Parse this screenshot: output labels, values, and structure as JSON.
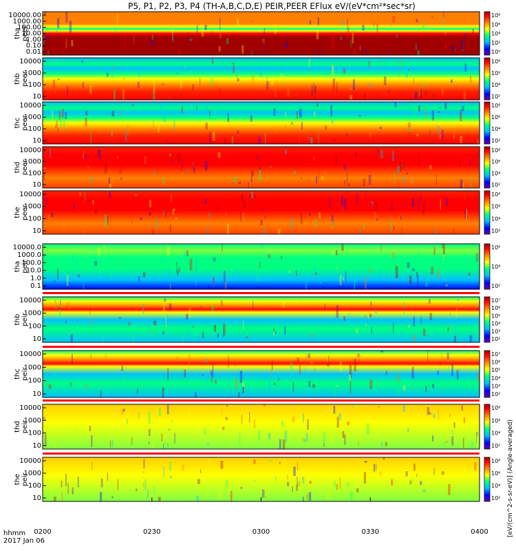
{
  "chart_data": {
    "type": "heatmap",
    "title": "P5, P1, P2, P3, P4 (TH-A,B,C,D,E) PEIR,PEER EFlux eV/(eV*cm²*sec*sr)",
    "xlabel": "hhmm",
    "date_label": "2017 Jan 06",
    "x_ticks": [
      "0200",
      "0230",
      "0300",
      "0330",
      "0400"
    ],
    "x_range": [
      "0200",
      "0400"
    ],
    "colorbar_units": "[eV/(cm^2-s-sr-eV)] (Angle-averaged)",
    "colormap": [
      "#6a00a8",
      "#0000ff",
      "#00c0ff",
      "#00ff80",
      "#ffff00",
      "#ff8000",
      "#ff0000",
      "#a00000"
    ],
    "panels": [
      {
        "name": "tha",
        "species": "peer",
        "ylabel_probe": "tha",
        "ylabel_species": "peer",
        "y_ticks": [
          "10000.00",
          "1000.00",
          "100.00",
          "10.00",
          "1.00",
          "0.10",
          "0.01"
        ],
        "cb_ticks": [
          "10⁸",
          "10⁶",
          "10⁴",
          "10²",
          "10⁰"
        ],
        "pattern": "peer_a"
      },
      {
        "name": "thb",
        "species": "peer",
        "ylabel_probe": "thb",
        "ylabel_species": "peer",
        "y_ticks": [
          "10000",
          "1000",
          "100",
          "10"
        ],
        "cb_ticks": [
          "10⁸",
          "10⁶",
          "10⁴",
          "10²"
        ],
        "pattern": "peer_bc"
      },
      {
        "name": "thc",
        "species": "peer",
        "ylabel_probe": "thc",
        "ylabel_species": "peer",
        "y_ticks": [
          "10000",
          "1000",
          "100",
          "10"
        ],
        "cb_ticks": [
          "10⁸",
          "10⁶",
          "10⁴",
          "10²"
        ],
        "pattern": "peer_bc"
      },
      {
        "name": "thd",
        "species": "peer",
        "ylabel_probe": "thd",
        "ylabel_species": "peer",
        "y_ticks": [
          "10000",
          "1000",
          "100",
          "10"
        ],
        "cb_ticks": [
          "10⁸",
          "10⁶",
          "10⁴",
          "10²"
        ],
        "pattern": "peer_de"
      },
      {
        "name": "the",
        "species": "peer",
        "ylabel_probe": "the",
        "ylabel_species": "peer",
        "y_ticks": [
          "10000",
          "1000",
          "100",
          "10"
        ],
        "cb_ticks": [
          "10⁸",
          "10⁶",
          "10⁴",
          "10²"
        ],
        "pattern": "peer_de"
      },
      {
        "name": "tha",
        "species": "peir",
        "ylabel_probe": "tha",
        "ylabel_species": "peir",
        "y_ticks": [
          "10000.0",
          "1000.0",
          "100.0",
          "10.0",
          "1.0",
          "0.1"
        ],
        "cb_ticks": [
          "10⁶",
          "10⁴",
          "10²"
        ],
        "pattern": "peir_a"
      },
      {
        "name": "thb",
        "species": "peir",
        "ylabel_probe": "thb",
        "ylabel_species": "peir",
        "y_ticks": [
          "10000",
          "1000",
          "100",
          "10"
        ],
        "cb_ticks": [
          "10⁷",
          "10⁶",
          "10⁵",
          "10⁴",
          "10³",
          "10²"
        ],
        "pattern": "peir_bc"
      },
      {
        "name": "thc",
        "species": "peir",
        "ylabel_probe": "thc",
        "ylabel_species": "peir",
        "y_ticks": [
          "10000",
          "1000",
          "100",
          "10"
        ],
        "cb_ticks": [
          "10⁷",
          "10⁶",
          "10⁵",
          "10⁴",
          "10³",
          "10²"
        ],
        "pattern": "peir_bc"
      },
      {
        "name": "thd",
        "species": "peir",
        "ylabel_probe": "thd",
        "ylabel_species": "peir",
        "y_ticks": [
          "10000",
          "1000",
          "100",
          "10"
        ],
        "cb_ticks": [
          "10⁸",
          "10⁶",
          "10⁴",
          "10²"
        ],
        "pattern": "peir_de"
      },
      {
        "name": "the",
        "species": "peir",
        "ylabel_probe": "the",
        "ylabel_species": "peir",
        "y_ticks": [
          "10000",
          "1000",
          "100",
          "10"
        ],
        "cb_ticks": [
          "10⁸",
          "10⁶",
          "10⁴",
          "10²"
        ],
        "pattern": "peir_de"
      }
    ]
  }
}
